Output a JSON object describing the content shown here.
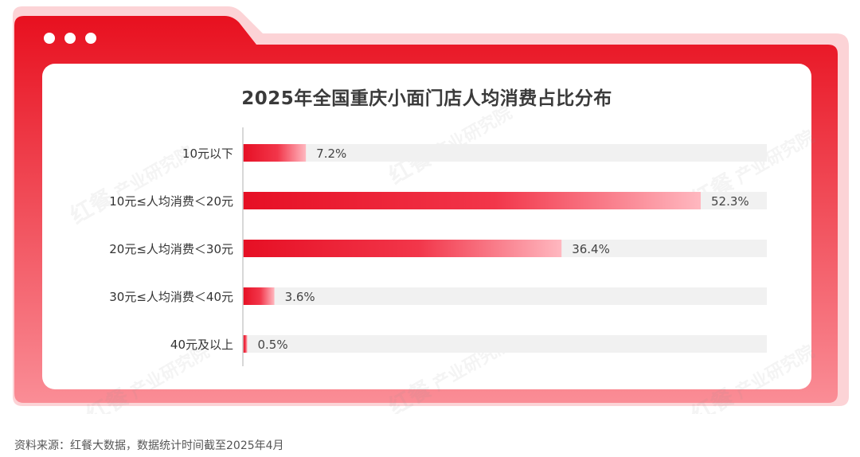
{
  "colors": {
    "frame_top": "#e8101f",
    "frame_bottom": "#fa8d96",
    "tab_back": "#fcd3d6",
    "bar_dark": "#e60f24",
    "bar_light": "#ffb8c0",
    "track": "#f1f1f1",
    "axis": "#cccccc"
  },
  "watermark": {
    "brand": "红餐",
    "text": "产业研究院"
  },
  "chart_data": {
    "type": "bar",
    "orientation": "horizontal",
    "title": "2025年全国重庆小面门店人均消费占比分布",
    "categories": [
      "10元以下",
      "10元≤人均消费＜20元",
      "20元≤人均消费＜30元",
      "30元≤人均消费＜40元",
      "40元及以上"
    ],
    "values": [
      7.2,
      52.3,
      36.4,
      3.6,
      0.5
    ],
    "value_labels": [
      "7.2%",
      "52.3%",
      "36.4%",
      "3.6%",
      "0.5%"
    ],
    "unit": "%",
    "xlim": [
      0,
      60
    ],
    "grid": false,
    "legend": "none"
  },
  "source": "资料来源：红餐大数据，数据统计时间截至2025年4月"
}
